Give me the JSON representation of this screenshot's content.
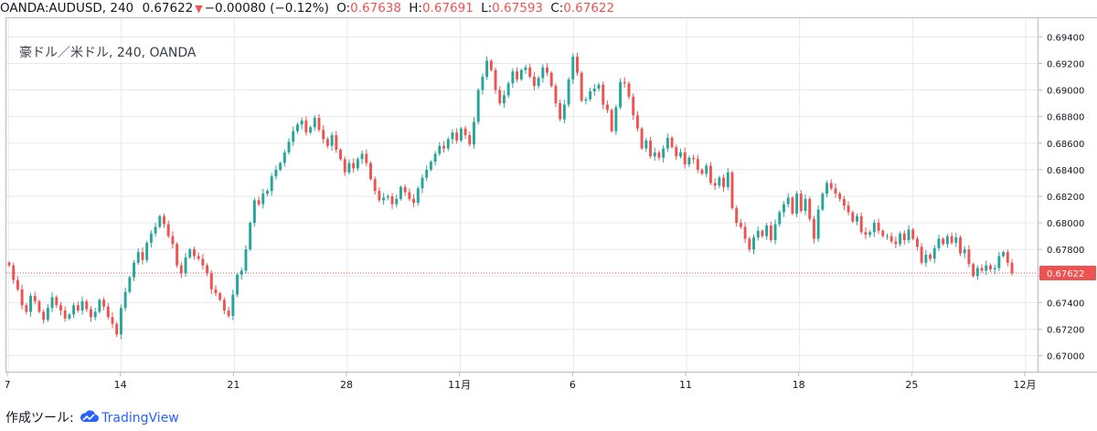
{
  "header": {
    "symbol": "OANDA:AUDUSD, 240",
    "last": "0.67622",
    "change_arrow": "▼",
    "change": "−0.00080 (−0.12%)",
    "o_label": "O:",
    "o_value": "0.67638",
    "h_label": "H:",
    "h_value": "0.67691",
    "l_label": "L:",
    "l_value": "0.67593",
    "c_label": "C:",
    "c_value": "0.67622"
  },
  "legend_text": "豪ドル／米ドル, 240, OANDA",
  "footer": {
    "prefix": "作成ツール:",
    "brand": "TradingView",
    "logo_icon": "tradingview-cloud-icon"
  },
  "colors": {
    "up": "#26a69a",
    "down": "#ef5350",
    "grid": "#e6e8ee",
    "price_tag": "#ef5350"
  },
  "chart_data": {
    "type": "candlestick",
    "instrument": "AUDUSD",
    "timeframe": "240",
    "y_ticks": [
      "0.69400",
      "0.69200",
      "0.69000",
      "0.68800",
      "0.68600",
      "0.68400",
      "0.68200",
      "0.68000",
      "0.67800",
      "0.67600",
      "0.67400",
      "0.67200",
      "0.67000"
    ],
    "ylim": [
      0.6688,
      0.6954
    ],
    "x_ticks": [
      "7",
      "14",
      "21",
      "28",
      "11月",
      "6",
      "11",
      "18",
      "25",
      "12月"
    ],
    "last_price_label": "0.67622",
    "series": [
      {
        "name": "close",
        "values": [
          0.6768,
          0.6757,
          0.675,
          0.6738,
          0.6733,
          0.6745,
          0.6741,
          0.6733,
          0.6727,
          0.6736,
          0.6744,
          0.6738,
          0.6734,
          0.6728,
          0.6731,
          0.6738,
          0.6734,
          0.6741,
          0.6735,
          0.6729,
          0.6733,
          0.6742,
          0.6737,
          0.6729,
          0.6724,
          0.6716,
          0.6736,
          0.6748,
          0.6759,
          0.677,
          0.6778,
          0.6772,
          0.6785,
          0.6792,
          0.6797,
          0.6805,
          0.6799,
          0.679,
          0.6784,
          0.6768,
          0.6762,
          0.6774,
          0.678,
          0.6775,
          0.6773,
          0.6768,
          0.6762,
          0.675,
          0.6747,
          0.6742,
          0.6734,
          0.673,
          0.6746,
          0.6761,
          0.6764,
          0.678,
          0.68,
          0.6817,
          0.6814,
          0.6822,
          0.6824,
          0.6835,
          0.684,
          0.6845,
          0.6853,
          0.6861,
          0.6869,
          0.6874,
          0.6877,
          0.6868,
          0.6872,
          0.6879,
          0.687,
          0.6863,
          0.6858,
          0.6866,
          0.6855,
          0.6848,
          0.6838,
          0.6845,
          0.6841,
          0.6848,
          0.6852,
          0.6845,
          0.6833,
          0.6824,
          0.6817,
          0.6819,
          0.682,
          0.6814,
          0.6818,
          0.6827,
          0.6823,
          0.6818,
          0.6815,
          0.6826,
          0.6834,
          0.684,
          0.6846,
          0.6852,
          0.6858,
          0.6856,
          0.6863,
          0.6868,
          0.6862,
          0.6871,
          0.6866,
          0.6859,
          0.6876,
          0.69,
          0.691,
          0.6922,
          0.6915,
          0.69,
          0.689,
          0.6896,
          0.6905,
          0.6914,
          0.6908,
          0.6915,
          0.6917,
          0.691,
          0.6903,
          0.6909,
          0.6917,
          0.6913,
          0.6903,
          0.689,
          0.6878,
          0.6889,
          0.6908,
          0.6925,
          0.6913,
          0.6892,
          0.6893,
          0.6899,
          0.6901,
          0.6904,
          0.6889,
          0.6885,
          0.6869,
          0.6887,
          0.6906,
          0.6905,
          0.6895,
          0.6881,
          0.6871,
          0.6856,
          0.6862,
          0.685,
          0.6853,
          0.6849,
          0.6856,
          0.6864,
          0.6857,
          0.685,
          0.6853,
          0.6844,
          0.6849,
          0.6848,
          0.684,
          0.6837,
          0.6843,
          0.683,
          0.6828,
          0.6834,
          0.6827,
          0.6838,
          0.6811,
          0.68,
          0.6797,
          0.6788,
          0.678,
          0.6789,
          0.6794,
          0.679,
          0.6798,
          0.6787,
          0.6799,
          0.6808,
          0.6814,
          0.6819,
          0.6807,
          0.6822,
          0.6809,
          0.6818,
          0.6803,
          0.6788,
          0.681,
          0.6822,
          0.683,
          0.6826,
          0.6822,
          0.6818,
          0.6813,
          0.6808,
          0.6801,
          0.6805,
          0.6793,
          0.6791,
          0.6793,
          0.68,
          0.6794,
          0.679,
          0.679,
          0.6786,
          0.6784,
          0.6792,
          0.6787,
          0.6795,
          0.6788,
          0.6782,
          0.677,
          0.6776,
          0.6773,
          0.6781,
          0.6788,
          0.6784,
          0.679,
          0.6785,
          0.6789,
          0.6777,
          0.678,
          0.6769,
          0.676,
          0.6766,
          0.6764,
          0.6768,
          0.6765,
          0.6766,
          0.6775,
          0.6778,
          0.677,
          0.6762
        ]
      }
    ]
  }
}
